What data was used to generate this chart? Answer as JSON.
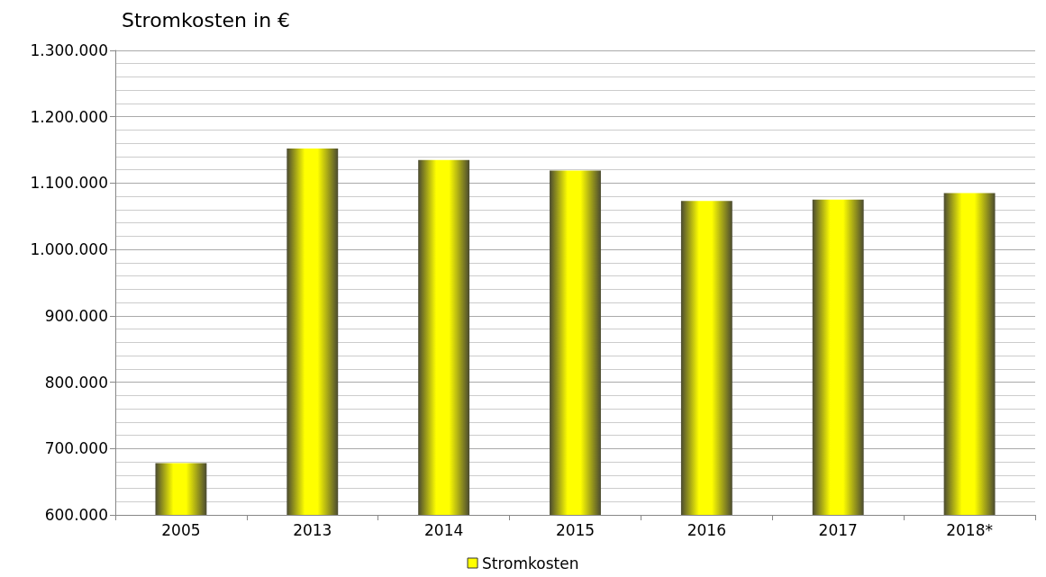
{
  "chart_data": {
    "type": "bar",
    "title": "Stromkosten in €",
    "categories": [
      "2005",
      "2013",
      "2014",
      "2015",
      "2016",
      "2017",
      "2018*"
    ],
    "series": [
      {
        "name": "Stromkosten",
        "color": "#ffff00",
        "values": [
          678000,
          1152000,
          1135000,
          1119000,
          1073000,
          1075000,
          1085000
        ]
      }
    ],
    "ylim": [
      600000,
      1300000
    ],
    "yticks": [
      {
        "value": 600000,
        "label": "600.000"
      },
      {
        "value": 700000,
        "label": "700.000"
      },
      {
        "value": 800000,
        "label": "800.000"
      },
      {
        "value": 900000,
        "label": "900.000"
      },
      {
        "value": 1000000,
        "label": "1.000.000"
      },
      {
        "value": 1100000,
        "label": "1.100.000"
      },
      {
        "value": 1200000,
        "label": "1.200.000"
      },
      {
        "value": 1300000,
        "label": "1.300.000"
      }
    ],
    "grid": "y",
    "legend": "bottom"
  }
}
